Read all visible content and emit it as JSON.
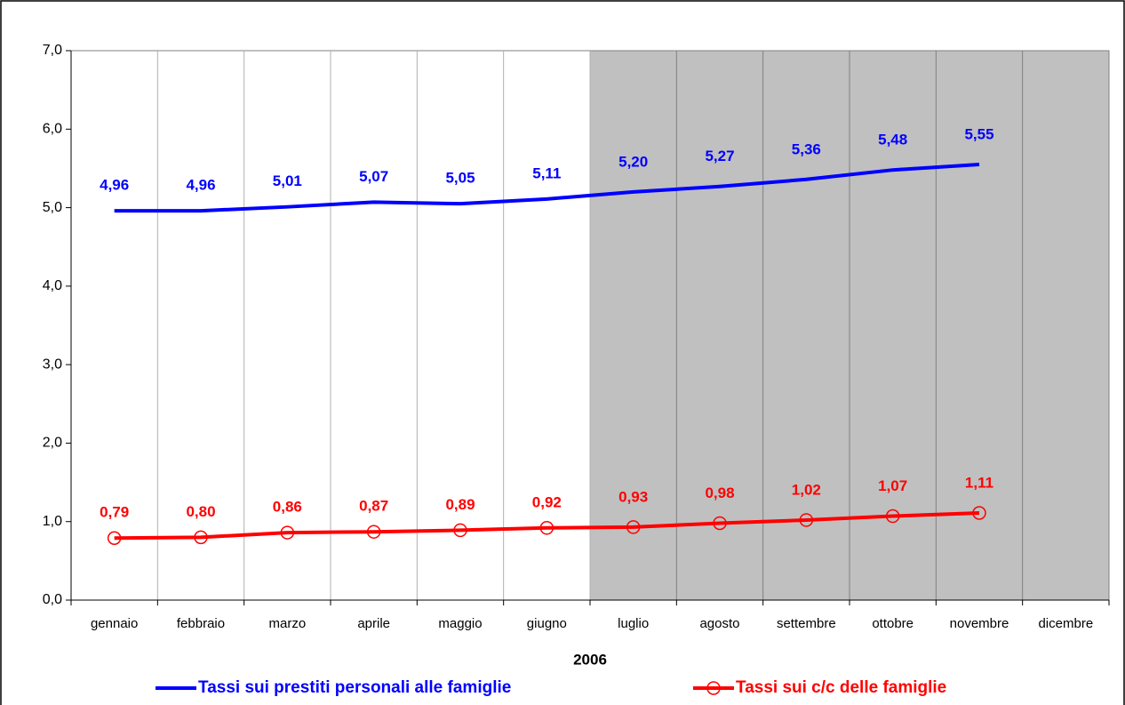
{
  "chart_data": {
    "type": "line",
    "x_label": "2006",
    "categories": [
      "gennaio",
      "febbraio",
      "marzo",
      "aprile",
      "maggio",
      "giugno",
      "luglio",
      "agosto",
      "settembre",
      "ottobre",
      "novembre",
      "dicembre"
    ],
    "series": [
      {
        "name": "Tassi sui prestiti personali alle famiglie",
        "color": "#0000ff",
        "marker": "none",
        "values": [
          4.96,
          4.96,
          5.01,
          5.07,
          5.05,
          5.11,
          5.2,
          5.27,
          5.36,
          5.48,
          5.55,
          null
        ],
        "value_labels": [
          "4,96",
          "4,96",
          "5,01",
          "5,07",
          "5,05",
          "5,11",
          "5,20",
          "5,27",
          "5,36",
          "5,48",
          "5,55",
          null
        ]
      },
      {
        "name": "Tassi sui c/c delle famiglie",
        "color": "#ff0000",
        "marker": "open-circle",
        "values": [
          0.79,
          0.8,
          0.86,
          0.87,
          0.89,
          0.92,
          0.93,
          0.98,
          1.02,
          1.07,
          1.11,
          null
        ],
        "value_labels": [
          "0,79",
          "0,80",
          "0,86",
          "0,87",
          "0,89",
          "0,92",
          "0,93",
          "0,98",
          "1,02",
          "1,07",
          "1,11",
          null
        ]
      }
    ],
    "ylim": [
      0,
      7
    ],
    "yticks": [
      {
        "value": 0,
        "label": "0,0"
      },
      {
        "value": 1,
        "label": "1,0"
      },
      {
        "value": 2,
        "label": "2,0"
      },
      {
        "value": 3,
        "label": "3,0"
      },
      {
        "value": 4,
        "label": "4,0"
      },
      {
        "value": 5,
        "label": "5,0"
      },
      {
        "value": 6,
        "label": "6,0"
      },
      {
        "value": 7,
        "label": "7,0"
      }
    ],
    "grid": true,
    "legend": "bottom"
  }
}
